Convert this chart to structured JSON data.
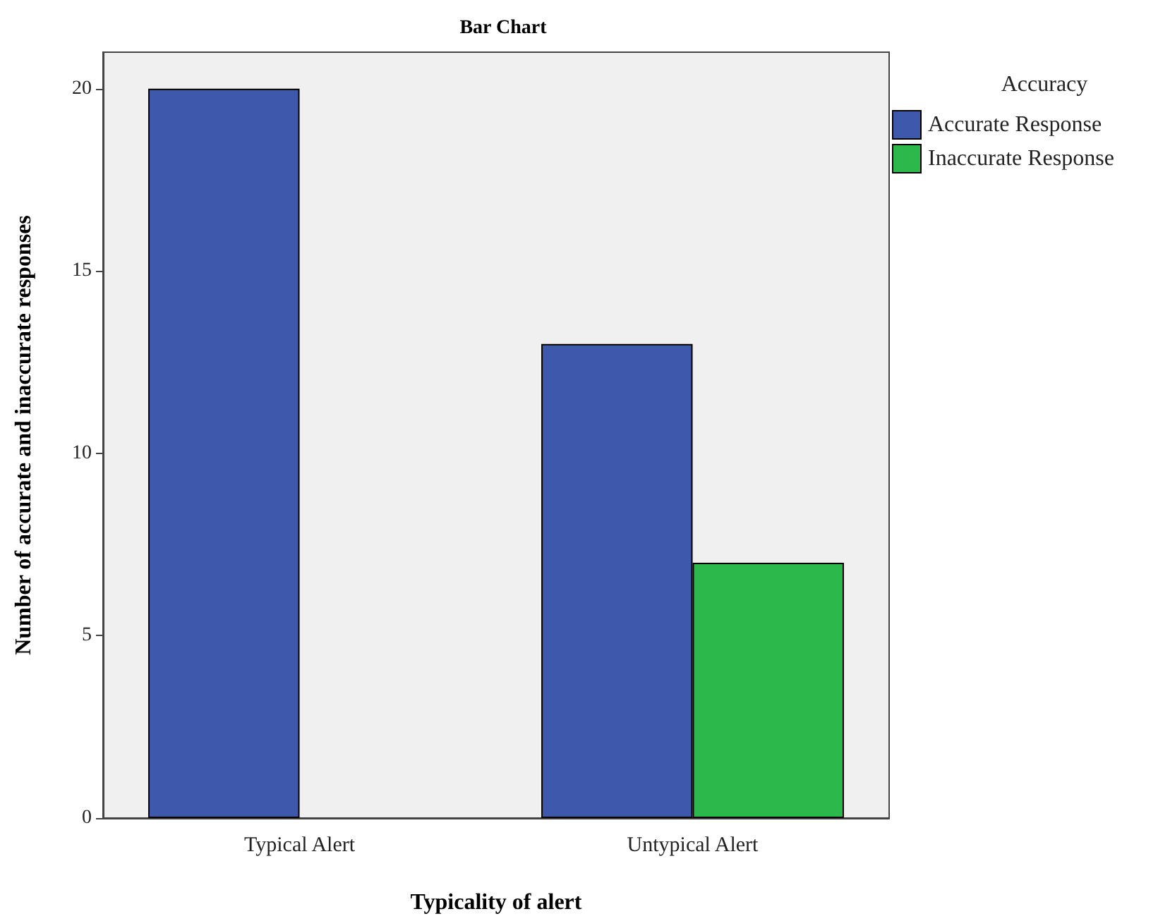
{
  "chart_data": {
    "type": "bar",
    "title": "Bar Chart",
    "xlabel": "Typicality of alert",
    "ylabel": "Number of accurate and inaccurate responses",
    "legend_title": "Accuracy",
    "categories": [
      "Typical Alert",
      "Untypical Alert"
    ],
    "series": [
      {
        "name": "Accurate Response",
        "color": "#3e58ac",
        "values": [
          20,
          13
        ]
      },
      {
        "name": "Inaccurate Response",
        "color": "#2db84b",
        "values": [
          null,
          7
        ]
      }
    ],
    "ylim": [
      0,
      21
    ],
    "yticks": [
      0,
      5,
      10,
      15,
      20
    ],
    "grid": false,
    "legend": "top right"
  }
}
